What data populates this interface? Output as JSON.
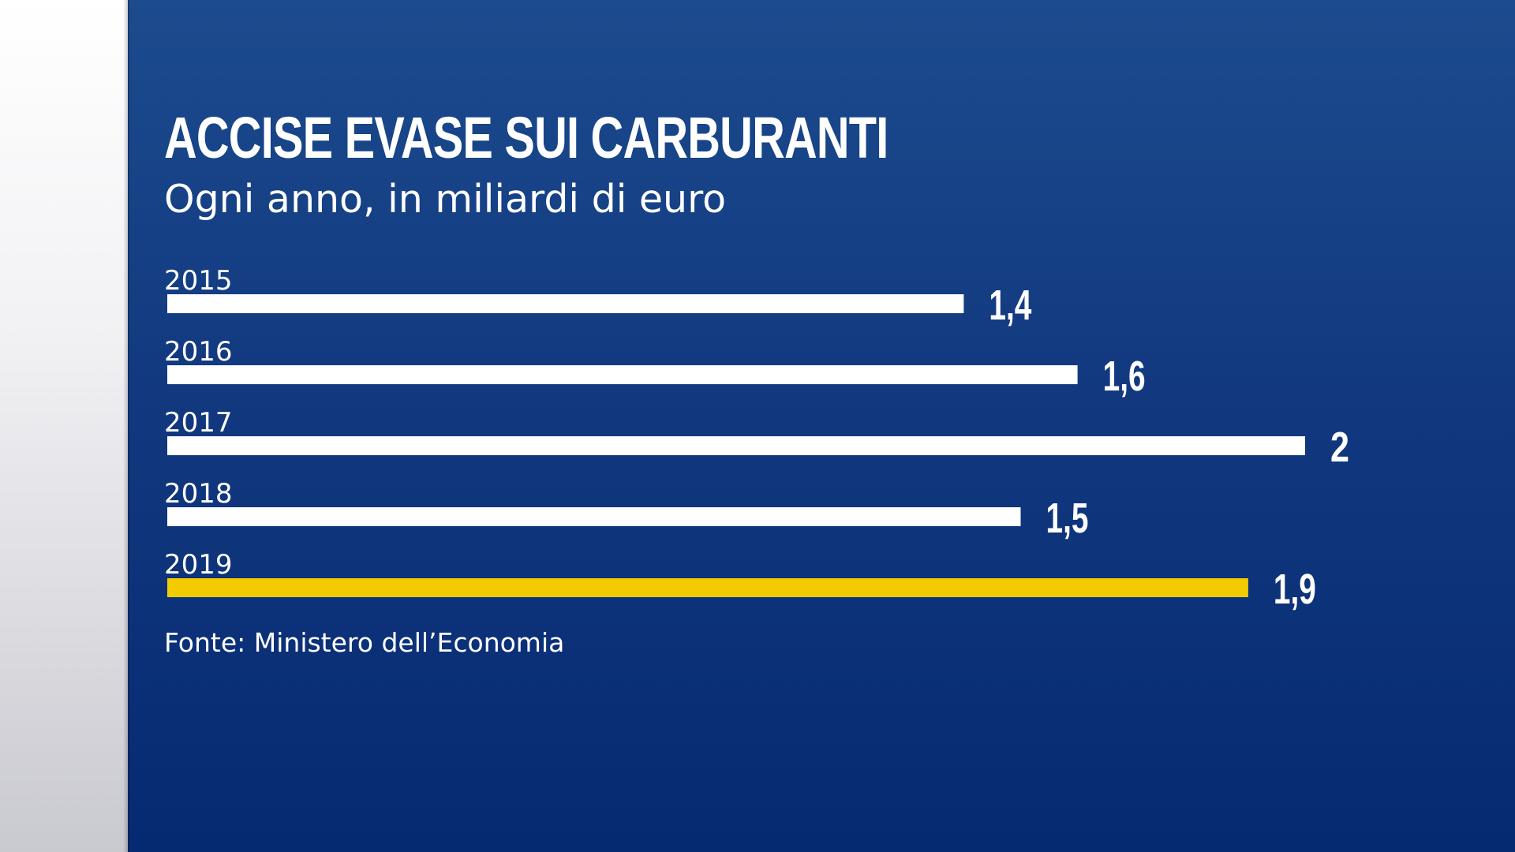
{
  "colors": {
    "background_top": "#1c4b8e",
    "background_bottom": "#062a72",
    "bar_default": "#ffffff",
    "bar_highlight": "#f3cc00",
    "text": "#ffffff"
  },
  "chart_data": {
    "type": "bar",
    "orientation": "horizontal",
    "title": "ACCISE EVASE SUI CARBURANTI",
    "subtitle": "Ogni anno, in miliardi di euro",
    "categories": [
      "2015",
      "2016",
      "2017",
      "2018",
      "2019"
    ],
    "values": [
      1.4,
      1.6,
      2,
      1.5,
      1.9
    ],
    "value_labels": [
      "1,4",
      "1,6",
      "2",
      "1,5",
      "1,9"
    ],
    "highlight": "2019",
    "xlim": [
      0,
      2
    ],
    "grid": false,
    "legend": "none",
    "source": "Fonte: Ministero dell’Economia"
  }
}
